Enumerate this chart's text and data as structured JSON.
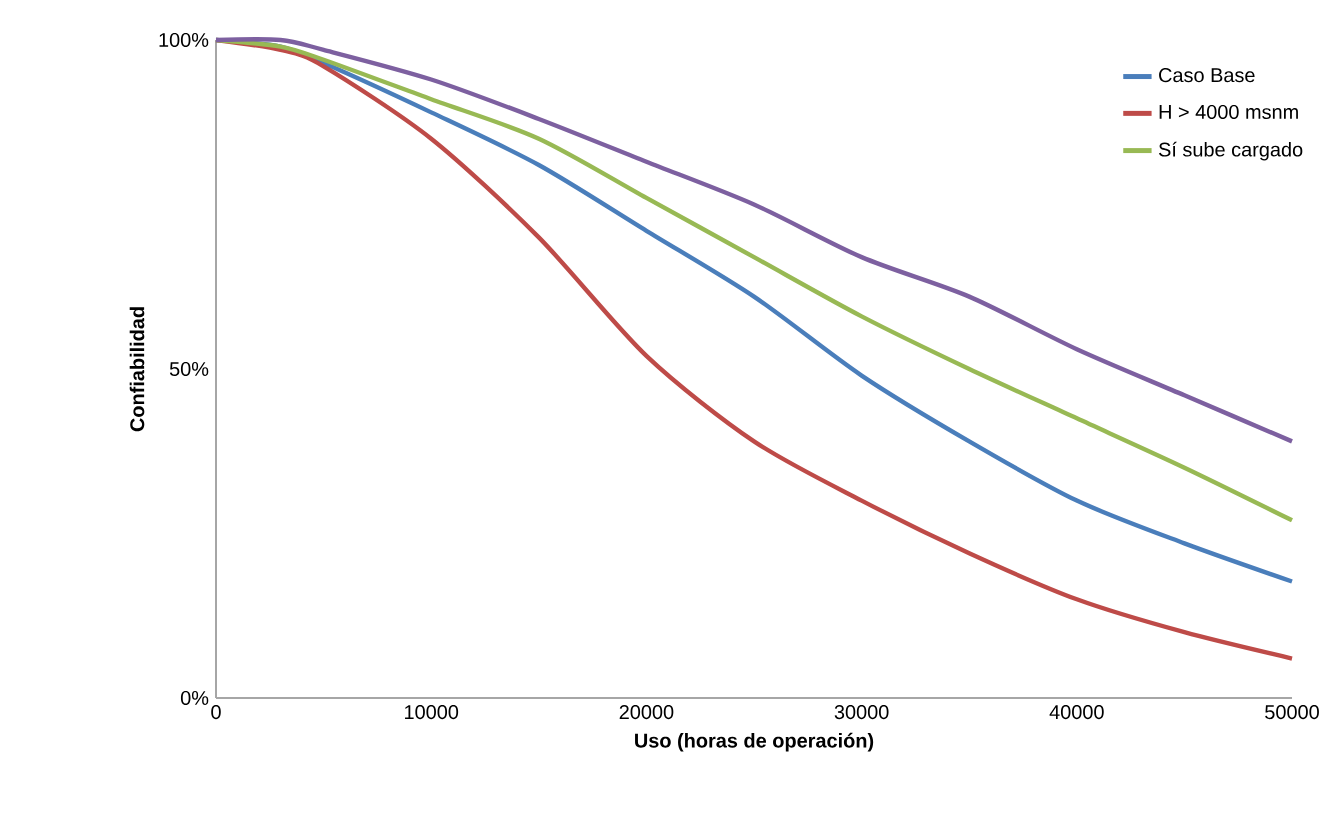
{
  "chart_data": {
    "type": "line",
    "xlabel": "Uso (horas de operación)",
    "ylabel": "Confiabilidad",
    "x": [
      0,
      3000,
      5000,
      10000,
      15000,
      20000,
      25000,
      30000,
      35000,
      40000,
      45000,
      50000
    ],
    "series": [
      {
        "name": "Caso Base",
        "color": "#4a7ebb",
        "values": [
          100,
          99,
          96.5,
          89,
          81,
          71,
          61,
          49,
          39,
          30,
          23.5,
          17.7
        ]
      },
      {
        "name": "H > 4000 msnm",
        "color": "#be4b48",
        "values": [
          100,
          98.5,
          96,
          85,
          70,
          52,
          39,
          30,
          22,
          15,
          10,
          6
        ]
      },
      {
        "name": "Sí sube cargado",
        "color": "#98b954",
        "values": [
          100,
          99,
          97,
          91,
          85,
          76,
          67,
          58,
          50,
          42.5,
          35,
          27
        ]
      },
      {
        "color": "#7d60a0",
        "values": [
          100,
          100,
          98.5,
          94,
          88,
          81.5,
          75,
          67,
          61,
          53,
          46,
          39
        ]
      }
    ],
    "xlim": [
      0,
      50000
    ],
    "xticks": [
      0,
      10000,
      20000,
      30000,
      40000,
      50000
    ],
    "ylim": [
      0,
      100
    ],
    "yticks": [
      {
        "value": 0,
        "label": "0%"
      },
      {
        "value": 50,
        "label": "50%"
      },
      {
        "value": 100,
        "label": "100%"
      }
    ],
    "grid": false,
    "legend": "top right",
    "marker": "none",
    "line_style": "solid"
  }
}
